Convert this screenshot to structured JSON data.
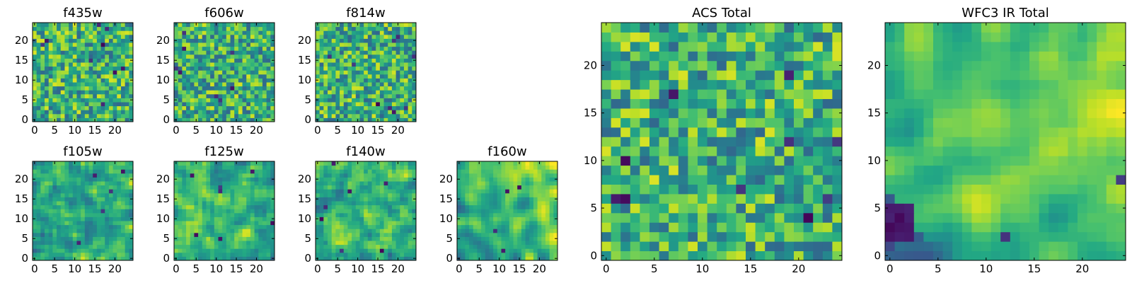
{
  "figure": {
    "title": ""
  },
  "chart_data": [
    {
      "type": "heatmap",
      "title": "f435w",
      "grid_size": [
        25,
        25
      ],
      "x_ticks": [
        "0",
        "5",
        "10",
        "15",
        "20"
      ],
      "y_ticks": [
        "0",
        "5",
        "10",
        "15",
        "20"
      ],
      "xlim": [
        0,
        25
      ],
      "ylim": [
        0,
        25
      ],
      "colormap": "viridis",
      "noise_scale": 1.0,
      "smoothness": 0,
      "dark_spots": 9,
      "bias": 0.62,
      "seed": 11
    },
    {
      "type": "heatmap",
      "title": "f606w",
      "grid_size": [
        25,
        25
      ],
      "x_ticks": [
        "0",
        "5",
        "10",
        "15",
        "20"
      ],
      "y_ticks": [
        "0",
        "5",
        "10",
        "15",
        "20"
      ],
      "xlim": [
        0,
        25
      ],
      "ylim": [
        0,
        25
      ],
      "colormap": "viridis",
      "noise_scale": 1.0,
      "smoothness": 0,
      "dark_spots": 8,
      "bias": 0.58,
      "seed": 23
    },
    {
      "type": "heatmap",
      "title": "f814w",
      "grid_size": [
        25,
        25
      ],
      "x_ticks": [
        "0",
        "5",
        "10",
        "15",
        "20"
      ],
      "y_ticks": [
        "0",
        "5",
        "10",
        "15",
        "20"
      ],
      "xlim": [
        0,
        25
      ],
      "ylim": [
        0,
        25
      ],
      "colormap": "viridis",
      "noise_scale": 1.0,
      "smoothness": 0,
      "dark_spots": 9,
      "bias": 0.6,
      "seed": 37
    },
    {
      "type": "heatmap",
      "title": "f105w",
      "grid_size": [
        25,
        25
      ],
      "x_ticks": [
        "0",
        "5",
        "10",
        "15",
        "20"
      ],
      "y_ticks": [
        "0",
        "5",
        "10",
        "15",
        "20"
      ],
      "xlim": [
        0,
        25
      ],
      "ylim": [
        0,
        25
      ],
      "colormap": "viridis",
      "noise_scale": 1.0,
      "smoothness": 1,
      "dark_spots": 5,
      "bias": 0.6,
      "seed": 41
    },
    {
      "type": "heatmap",
      "title": "f125w",
      "grid_size": [
        25,
        25
      ],
      "x_ticks": [
        "0",
        "5",
        "10",
        "15",
        "20"
      ],
      "y_ticks": [
        "0",
        "5",
        "10",
        "15",
        "20"
      ],
      "xlim": [
        0,
        25
      ],
      "ylim": [
        0,
        25
      ],
      "colormap": "viridis",
      "noise_scale": 1.0,
      "smoothness": 1,
      "dark_spots": 7,
      "bias": 0.58,
      "seed": 53
    },
    {
      "type": "heatmap",
      "title": "f140w",
      "grid_size": [
        25,
        25
      ],
      "x_ticks": [
        "0",
        "5",
        "10",
        "15",
        "20"
      ],
      "y_ticks": [
        "0",
        "5",
        "10",
        "15",
        "20"
      ],
      "xlim": [
        0,
        25
      ],
      "ylim": [
        0,
        25
      ],
      "colormap": "viridis",
      "noise_scale": 1.0,
      "smoothness": 1,
      "dark_spots": 7,
      "bias": 0.58,
      "seed": 67
    },
    {
      "type": "heatmap",
      "title": "f160w",
      "grid_size": [
        25,
        25
      ],
      "x_ticks": [
        "0",
        "5",
        "10",
        "15",
        "20"
      ],
      "y_ticks": [
        "0",
        "5",
        "10",
        "15",
        "20"
      ],
      "xlim": [
        0,
        25
      ],
      "ylim": [
        0,
        25
      ],
      "colormap": "viridis",
      "noise_scale": 1.0,
      "smoothness": 2,
      "dark_spots": 4,
      "bias": 0.64,
      "seed": 79,
      "gradient": "up-right"
    },
    {
      "type": "heatmap",
      "title": "ACS Total",
      "grid_size": [
        25,
        25
      ],
      "x_ticks": [
        "0",
        "5",
        "10",
        "15",
        "20"
      ],
      "y_ticks": [
        "0",
        "5",
        "10",
        "15",
        "20"
      ],
      "xlim": [
        0,
        25
      ],
      "ylim": [
        0,
        25
      ],
      "colormap": "viridis",
      "noise_scale": 1.0,
      "smoothness": 0,
      "dark_spots": 10,
      "bias": 0.64,
      "seed": 83
    },
    {
      "type": "heatmap",
      "title": "WFC3 IR Total",
      "grid_size": [
        25,
        25
      ],
      "x_ticks": [
        "0",
        "5",
        "10",
        "15",
        "20"
      ],
      "y_ticks": [
        "0",
        "5",
        "10",
        "15",
        "20"
      ],
      "xlim": [
        0,
        25
      ],
      "ylim": [
        0,
        25
      ],
      "colormap": "viridis",
      "noise_scale": 1.0,
      "smoothness": 2,
      "dark_spots": 2,
      "bias": 0.58,
      "seed": 97,
      "gradient": "up-right",
      "dark_corner": "lower-left"
    }
  ]
}
